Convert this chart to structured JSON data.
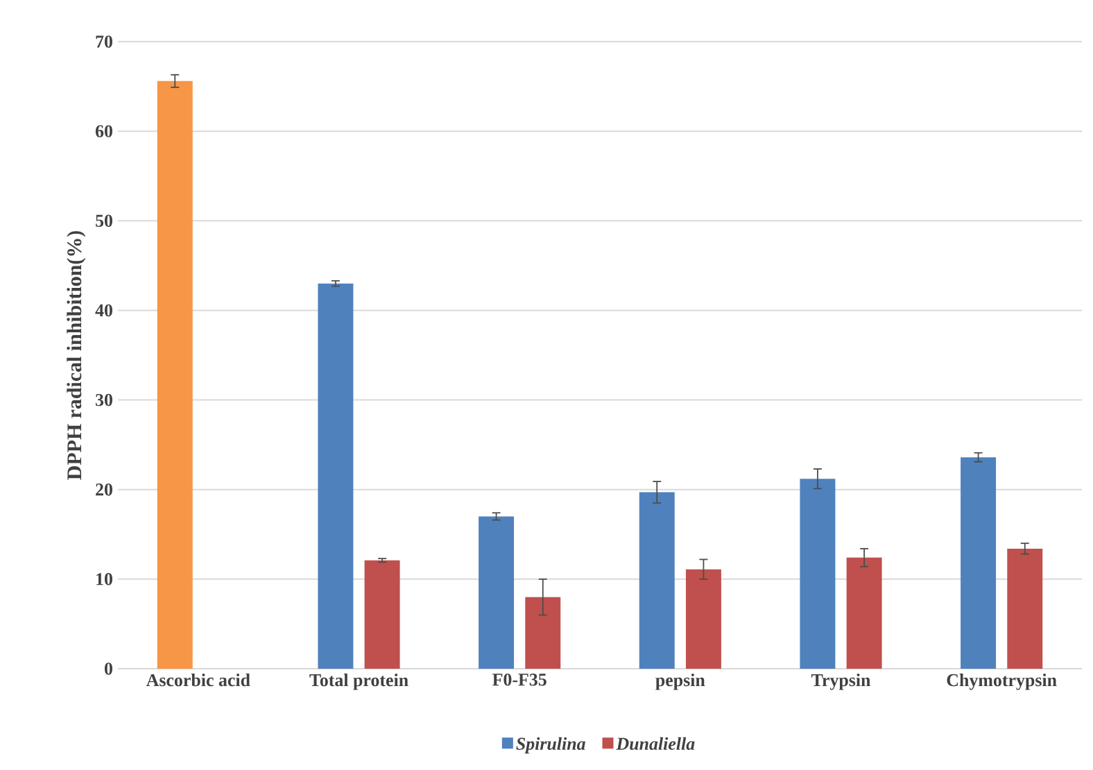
{
  "chart_data": {
    "type": "bar",
    "ylabel": "DPPH radical inhibition(%)",
    "categories": [
      "Ascorbic acid",
      "Total protein",
      "F0-F35",
      "pepsin",
      "Trypsin",
      "Chymotrypsin"
    ],
    "series": [
      {
        "name": "Spirulina",
        "color": "#4f81bd",
        "colors": [
          "#f79646",
          "#4f81bd",
          "#4f81bd",
          "#4f81bd",
          "#4f81bd",
          "#4f81bd"
        ],
        "values": [
          65.6,
          43.0,
          17.0,
          19.7,
          21.2,
          23.6
        ],
        "errors": [
          0.7,
          0.3,
          0.4,
          1.2,
          1.1,
          0.5
        ]
      },
      {
        "name": "Dunaliella",
        "color": "#c0504d",
        "values": [
          null,
          12.1,
          8.0,
          11.1,
          12.4,
          13.4
        ],
        "errors": [
          null,
          0.2,
          2.0,
          1.1,
          1.0,
          0.6
        ]
      }
    ],
    "ylim": [
      0,
      70
    ],
    "yticks": [
      0,
      10,
      20,
      30,
      40,
      50,
      60,
      70
    ],
    "grid": "y",
    "legend": "bottom"
  }
}
